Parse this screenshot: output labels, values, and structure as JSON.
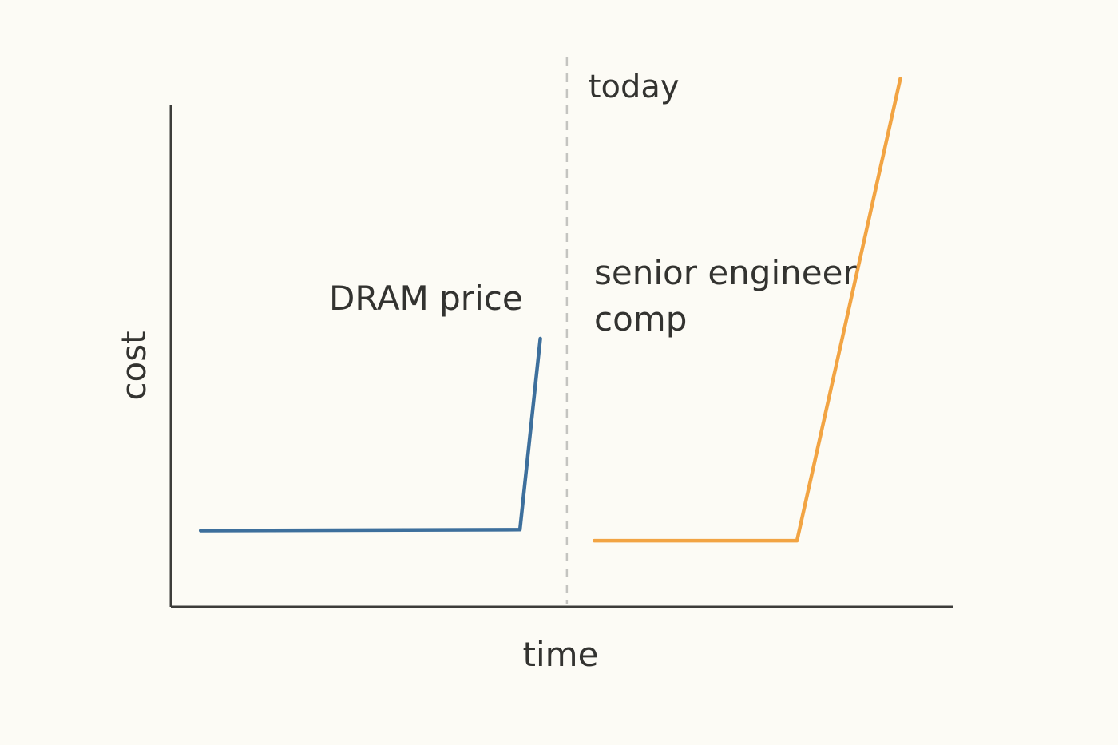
{
  "chart_data": {
    "type": "line",
    "title": "",
    "xlabel": "time",
    "ylabel": "cost",
    "xlim": [
      0,
      100
    ],
    "ylim": [
      0,
      100
    ],
    "grid": false,
    "ticks": false,
    "axis_color": "#3d3d3a",
    "background": "#fcfbf5",
    "today_marker": {
      "label": "today",
      "x": 50.6,
      "color": "#c4c4c0"
    },
    "series": [
      {
        "name": "DRAM price",
        "color": "#3d6f9c",
        "points": [
          [
            3.8,
            15.2
          ],
          [
            44.6,
            15.4
          ],
          [
            47.2,
            53.5
          ]
        ]
      },
      {
        "name": "senior engineer comp",
        "name_lines": [
          "senior engineer",
          "comp"
        ],
        "color": "#f2a443",
        "points": [
          [
            54.1,
            13.2
          ],
          [
            80.0,
            13.2
          ],
          [
            93.2,
            105.3
          ]
        ]
      }
    ]
  }
}
